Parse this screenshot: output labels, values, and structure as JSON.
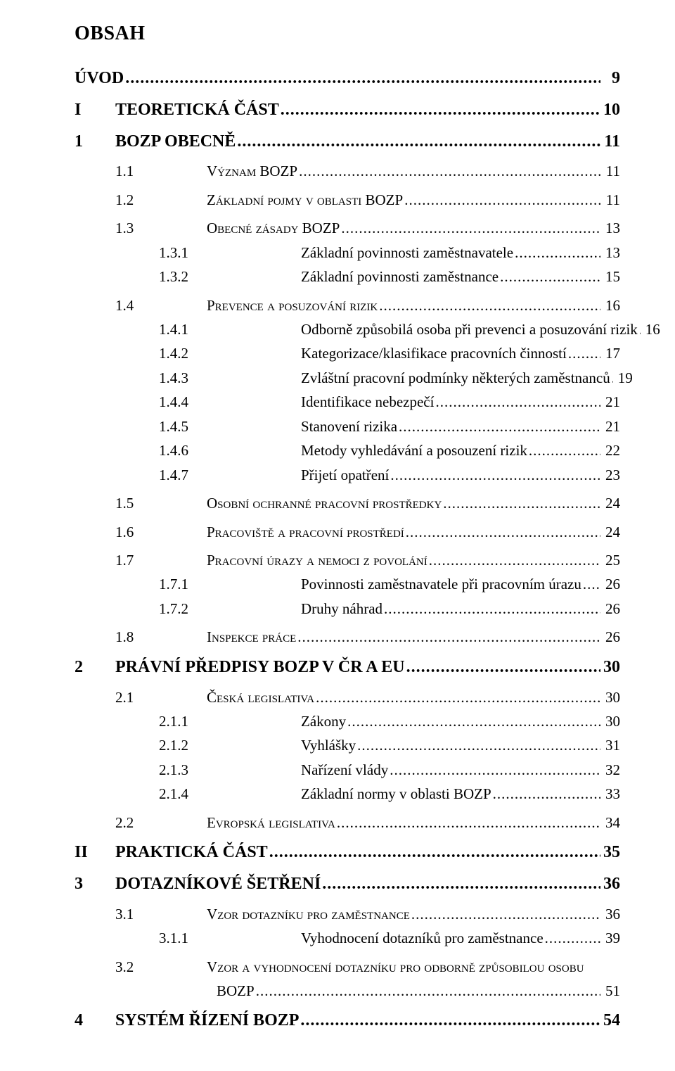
{
  "title": "OBSAH",
  "entries": [
    {
      "num": "",
      "label": "ÚVOD",
      "page": "9",
      "bold": true,
      "level": "top",
      "indent": "indent0",
      "gap": ""
    },
    {
      "num": "I",
      "label": "TEORETICKÁ ČÁST",
      "page": "10",
      "bold": true,
      "level": "part",
      "indent": "indent-chapter",
      "gap": "gap-m"
    },
    {
      "num": "1",
      "label": "BOZP OBECNĚ",
      "page": "11",
      "bold": true,
      "level": "chapter",
      "indent": "indent-chapter",
      "gap": "gap-m"
    },
    {
      "num": "1.1",
      "label": "Význam BOZP",
      "page": "11",
      "bold": false,
      "level": "section",
      "indent": "indent-section",
      "gap": "gap-m",
      "sc": true
    },
    {
      "num": "1.2",
      "label": "Základní pojmy v oblasti BOZP",
      "page": "11",
      "bold": false,
      "level": "section",
      "indent": "indent-section",
      "gap": "gap-m",
      "sc": true
    },
    {
      "num": "1.3",
      "label": "Obecné zásady BOZP",
      "page": "13",
      "bold": false,
      "level": "section",
      "indent": "indent-section",
      "gap": "gap-m",
      "sc": true
    },
    {
      "num": "1.3.1",
      "label": "Základní povinnosti zaměstnavatele",
      "page": "13",
      "bold": false,
      "level": "sub",
      "indent": "indent-sub",
      "gap": "gap-s"
    },
    {
      "num": "1.3.2",
      "label": "Základní povinnosti zaměstnance",
      "page": "15",
      "bold": false,
      "level": "sub",
      "indent": "indent-sub",
      "gap": ""
    },
    {
      "num": "1.4",
      "label": "Prevence a posuzování rizik",
      "page": "16",
      "bold": false,
      "level": "section",
      "indent": "indent-section",
      "gap": "gap-m",
      "sc": true
    },
    {
      "num": "1.4.1",
      "label": "Odborně způsobilá osoba při prevenci a posuzování rizik",
      "page": "16",
      "bold": false,
      "level": "sub",
      "indent": "indent-sub",
      "gap": "gap-s"
    },
    {
      "num": "1.4.2",
      "label": "Kategorizace/klasifikace pracovních činností",
      "page": "17",
      "bold": false,
      "level": "sub",
      "indent": "indent-sub",
      "gap": ""
    },
    {
      "num": "1.4.3",
      "label": "Zvláštní pracovní podmínky některých zaměstnanců",
      "page": "19",
      "bold": false,
      "level": "sub",
      "indent": "indent-sub",
      "gap": ""
    },
    {
      "num": "1.4.4",
      "label": "Identifikace nebezpečí",
      "page": "21",
      "bold": false,
      "level": "sub",
      "indent": "indent-sub",
      "gap": ""
    },
    {
      "num": "1.4.5",
      "label": "Stanovení rizika",
      "page": "21",
      "bold": false,
      "level": "sub",
      "indent": "indent-sub",
      "gap": ""
    },
    {
      "num": "1.4.6",
      "label": "Metody vyhledávání a posouzení rizik",
      "page": "22",
      "bold": false,
      "level": "sub",
      "indent": "indent-sub",
      "gap": ""
    },
    {
      "num": "1.4.7",
      "label": "Přijetí opatření",
      "page": "23",
      "bold": false,
      "level": "sub",
      "indent": "indent-sub",
      "gap": ""
    },
    {
      "num": "1.5",
      "label": "Osobní ochranné pracovní prostředky",
      "page": "24",
      "bold": false,
      "level": "section",
      "indent": "indent-section",
      "gap": "gap-m",
      "sc": true
    },
    {
      "num": "1.6",
      "label": "Pracoviště a pracovní prostředí",
      "page": "24",
      "bold": false,
      "level": "section",
      "indent": "indent-section",
      "gap": "gap-m",
      "sc": true
    },
    {
      "num": "1.7",
      "label": "Pracovní úrazy a nemoci z povolání",
      "page": "25",
      "bold": false,
      "level": "section",
      "indent": "indent-section",
      "gap": "gap-m",
      "sc": true
    },
    {
      "num": "1.7.1",
      "label": "Povinnosti zaměstnavatele při pracovním úrazu",
      "page": "26",
      "bold": false,
      "level": "sub",
      "indent": "indent-sub",
      "gap": "gap-s"
    },
    {
      "num": "1.7.2",
      "label": "Druhy náhrad",
      "page": "26",
      "bold": false,
      "level": "sub",
      "indent": "indent-sub",
      "gap": ""
    },
    {
      "num": "1.8",
      "label": "Inspekce práce",
      "page": "26",
      "bold": false,
      "level": "section",
      "indent": "indent-section",
      "gap": "gap-m",
      "sc": true
    },
    {
      "num": "2",
      "label": "PRÁVNÍ PŘEDPISY BOZP V ČR A EU",
      "page": "30",
      "bold": true,
      "level": "chapter",
      "indent": "indent-chapter",
      "gap": "gap-m"
    },
    {
      "num": "2.1",
      "label": "Česká legislativa",
      "page": "30",
      "bold": false,
      "level": "section",
      "indent": "indent-section",
      "gap": "gap-m",
      "sc": true
    },
    {
      "num": "2.1.1",
      "label": "Zákony",
      "page": "30",
      "bold": false,
      "level": "sub",
      "indent": "indent-sub",
      "gap": "gap-s"
    },
    {
      "num": "2.1.2",
      "label": "Vyhlášky",
      "page": "31",
      "bold": false,
      "level": "sub",
      "indent": "indent-sub",
      "gap": ""
    },
    {
      "num": "2.1.3",
      "label": "Nařízení vlády",
      "page": "32",
      "bold": false,
      "level": "sub",
      "indent": "indent-sub",
      "gap": ""
    },
    {
      "num": "2.1.4",
      "label": "Základní normy v oblasti BOZP",
      "page": "33",
      "bold": false,
      "level": "sub",
      "indent": "indent-sub",
      "gap": ""
    },
    {
      "num": "2.2",
      "label": "Evropská legislativa",
      "page": "34",
      "bold": false,
      "level": "section",
      "indent": "indent-section",
      "gap": "gap-m",
      "sc": true
    },
    {
      "num": "II",
      "label": "PRAKTICKÁ ČÁST",
      "page": "35",
      "bold": true,
      "level": "part",
      "indent": "indent-chapter",
      "gap": "gap-m"
    },
    {
      "num": "3",
      "label": "DOTAZNÍKOVÉ ŠETŘENÍ",
      "page": "36",
      "bold": true,
      "level": "chapter",
      "indent": "indent-chapter",
      "gap": "gap-m"
    },
    {
      "num": "3.1",
      "label": "Vzor dotazníku pro zaměstnance",
      "page": "36",
      "bold": false,
      "level": "section",
      "indent": "indent-section",
      "gap": "gap-m",
      "sc": true
    },
    {
      "num": "3.1.1",
      "label": "Vyhodnocení dotazníků pro zaměstnance",
      "page": "39",
      "bold": false,
      "level": "sub",
      "indent": "indent-sub",
      "gap": "gap-s"
    },
    {
      "num": "3.2",
      "label": "Vzor a vyhodnocení dotazníku pro odborně způsobilou osobu",
      "page": "",
      "bold": false,
      "level": "section",
      "indent": "indent-section",
      "gap": "gap-m",
      "sc": true,
      "nodots": true
    },
    {
      "num": "",
      "label": "BOZP",
      "page": "51",
      "bold": false,
      "level": "section",
      "indent": "bozp-continuation",
      "gap": "",
      "sc": false
    },
    {
      "num": "4",
      "label": "SYSTÉM ŘÍZENÍ BOZP",
      "page": "54",
      "bold": true,
      "level": "chapter",
      "indent": "indent-chapter",
      "gap": "gap-m"
    }
  ]
}
